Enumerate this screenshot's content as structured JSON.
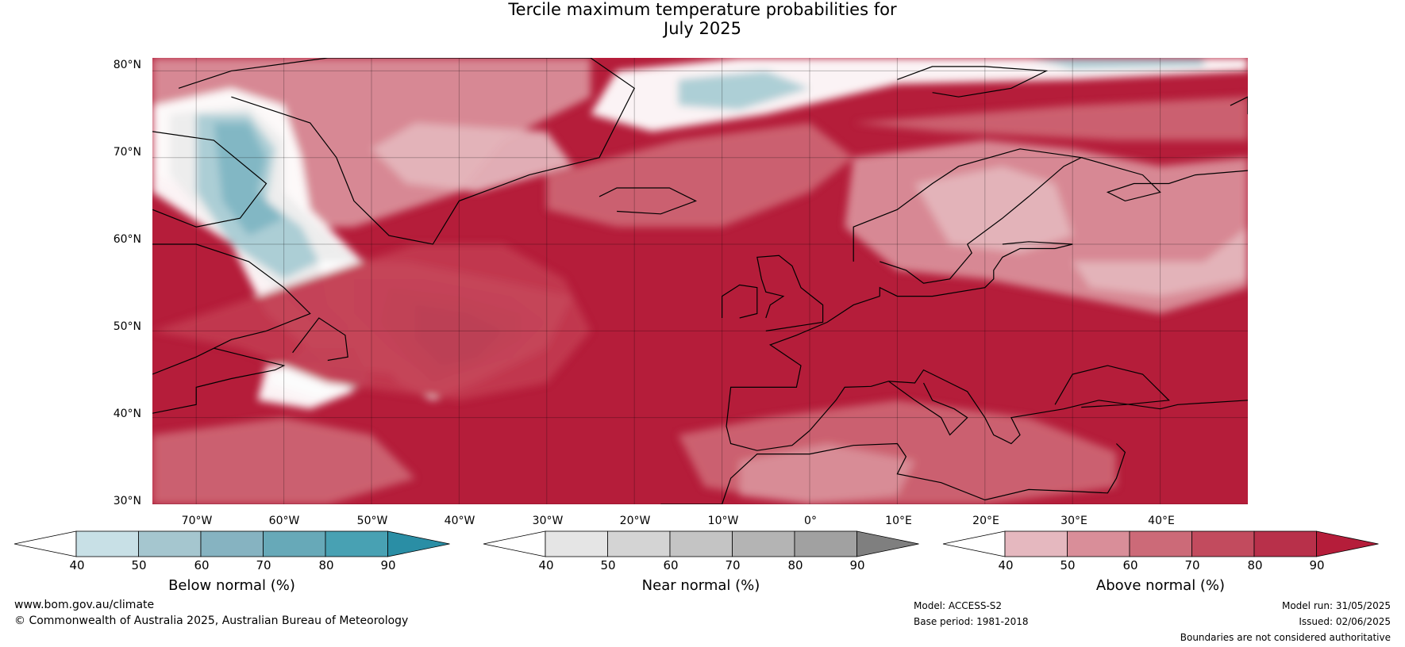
{
  "title": {
    "line1": "Tercile maximum temperature probabilities for",
    "line2": "July 2025"
  },
  "map": {
    "lat_labels": [
      "80°N",
      "70°N",
      "60°N",
      "50°N",
      "40°N",
      "30°N"
    ],
    "lon_labels": [
      "70°W",
      "60°W",
      "50°W",
      "40°W",
      "30°W",
      "20°W",
      "10°W",
      "0°",
      "10°E",
      "20°E",
      "30°E",
      "40°E"
    ],
    "lat_range": [
      30,
      81.5
    ],
    "lon_range": [
      -75,
      50
    ],
    "ocean_color": "#b51d3a",
    "colors": {
      "above_90": "#b51d3a",
      "above_80": "#c23a50",
      "above_70": "#cc6473",
      "above_60": "#d98e99",
      "above_50": "#e4b5bc",
      "near_40": "#ececec",
      "near_50": "#d4d4d4",
      "below_50": "#a9ccd4",
      "below_60": "#7fb5c3",
      "below_70": "#4c9fb2",
      "white": "#ffffff"
    }
  },
  "colorbars": [
    {
      "name": "below",
      "label": "Below normal (%)",
      "ticks": [
        "40",
        "50",
        "60",
        "70",
        "80",
        "90"
      ],
      "colors": [
        "#ffffff",
        "#c8e0e6",
        "#a5c6cf",
        "#86b3c1",
        "#67a9b8",
        "#48a1b3",
        "#2a8ea5"
      ]
    },
    {
      "name": "near",
      "label": "Near normal (%)",
      "ticks": [
        "40",
        "50",
        "60",
        "70",
        "80",
        "90"
      ],
      "colors": [
        "#ffffff",
        "#e5e5e5",
        "#d4d4d4",
        "#c4c4c4",
        "#b4b4b4",
        "#a1a1a1",
        "#7f7f7f"
      ]
    },
    {
      "name": "above",
      "label": "Above normal (%)",
      "ticks": [
        "40",
        "50",
        "60",
        "70",
        "80",
        "90"
      ],
      "colors": [
        "#ffffff",
        "#e5b8bf",
        "#d98e99",
        "#cc6a78",
        "#c24b5e",
        "#b8304a",
        "#b51d3a"
      ]
    }
  ],
  "footer": {
    "website": "www.bom.gov.au/climate",
    "copyright": "© Commonwealth of Australia 2025, Australian Bureau of Meteorology",
    "model": "Model: ACCESS-S2",
    "base_period": "Base period: 1981-2018",
    "model_run": "Model run: 31/05/2025",
    "issued": "Issued: 02/06/2025",
    "disclaimer": "Boundaries are not considered authoritative"
  }
}
